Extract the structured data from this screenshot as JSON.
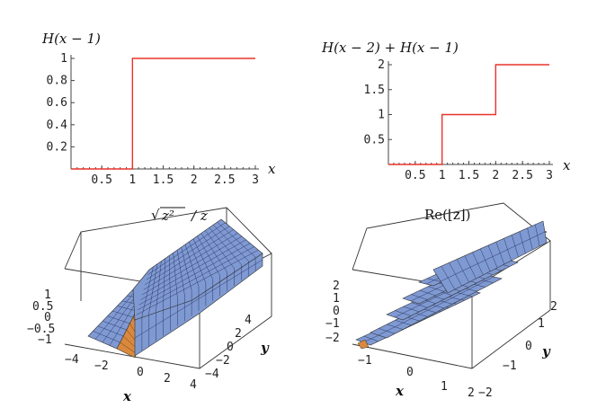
{
  "chart_data": [
    {
      "type": "line",
      "title": "H(x − 1)",
      "xlabel": "x",
      "ylabel": "",
      "xlim": [
        0,
        3
      ],
      "ylim": [
        0,
        1
      ],
      "xticks": [
        "0.5",
        "1",
        "1.5",
        "2",
        "2.5",
        "3"
      ],
      "yticks": [
        "0.2",
        "0.4",
        "0.6",
        "0.8",
        "1"
      ],
      "line_color": "#e8332a",
      "points": [
        [
          0,
          0
        ],
        [
          1,
          0
        ],
        [
          1,
          1
        ],
        [
          3,
          1
        ]
      ]
    },
    {
      "type": "line",
      "title": "H(x − 2) + H(x − 1)",
      "xlabel": "x",
      "ylabel": "",
      "xlim": [
        0,
        3
      ],
      "ylim": [
        0,
        2
      ],
      "xticks": [
        "0.5",
        "1",
        "1.5",
        "2",
        "2.5",
        "3"
      ],
      "yticks": [
        "0.5",
        "1",
        "1.5",
        "2"
      ],
      "line_color": "#e8332a",
      "points": [
        [
          0,
          0
        ],
        [
          1,
          0
        ],
        [
          1,
          1
        ],
        [
          2,
          1
        ],
        [
          2,
          2
        ],
        [
          3,
          2
        ]
      ]
    },
    {
      "type": "surface",
      "title": "√z² / z",
      "title_radicand": "z²",
      "title_tail": "/ z",
      "xlabel": "x",
      "ylabel": "y",
      "xticks": [
        "-4",
        "-2",
        "0",
        "2",
        "4"
      ],
      "yticks": [
        "-4",
        "-2",
        "0",
        "2",
        "4"
      ],
      "zticks": [
        "-1",
        "-0.5",
        "0",
        "0.5",
        "1"
      ],
      "surface_color": "#7f99d2",
      "wall_color": "#d9893e",
      "description_values": {
        "x_negative": -1,
        "x_positive": 1
      }
    },
    {
      "type": "surface",
      "title": "Re(⌊z⌋)",
      "xlabel": "x",
      "ylabel": "y",
      "xticks": [
        "-1",
        "0",
        "1",
        "2"
      ],
      "yticks": [
        "-2",
        "-1",
        "0",
        "1",
        "2"
      ],
      "zticks": [
        "-2",
        "-1",
        "0",
        "1",
        "2"
      ],
      "surface_color": "#7f99d2",
      "wall_color": "#d9893e",
      "step_levels": [
        -2,
        -1,
        0,
        1,
        2
      ]
    }
  ]
}
